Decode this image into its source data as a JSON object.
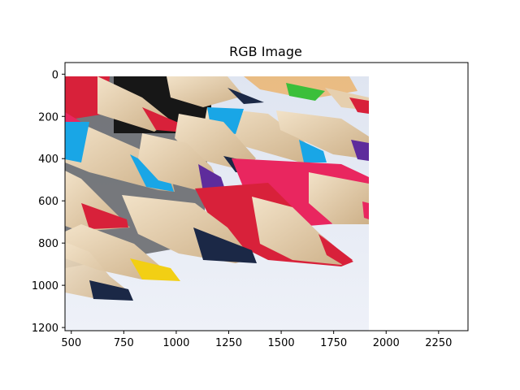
{
  "figure": {
    "title": "RGB Image"
  },
  "chart_data": {
    "type": "image",
    "title": "RGB Image",
    "xlabel": "",
    "ylabel": "",
    "xlim": [
      470,
      2390
    ],
    "ylim": [
      1215,
      -55
    ],
    "x_ticks": [
      500,
      750,
      1000,
      1250,
      1500,
      1750,
      2000,
      2250
    ],
    "y_ticks": [
      0,
      200,
      400,
      600,
      800,
      1000,
      1200
    ],
    "image_extent": {
      "x": [
        470,
        1920
      ],
      "y": [
        0,
        1215
      ]
    },
    "image_description": "Close-up of many colored pencil tips (red, blue, pink, yellow, purple, green, black) pointing right on a white surface",
    "colors": {
      "red": "#d8213a",
      "blue": "#19a6e6",
      "pink": "#e9265f",
      "yellow": "#f2cf14",
      "purple": "#5e2c9c",
      "green": "#3bbf3a",
      "navy": "#1b2846",
      "wood": "#e6cfae",
      "surface": "#e8ecf6"
    }
  }
}
